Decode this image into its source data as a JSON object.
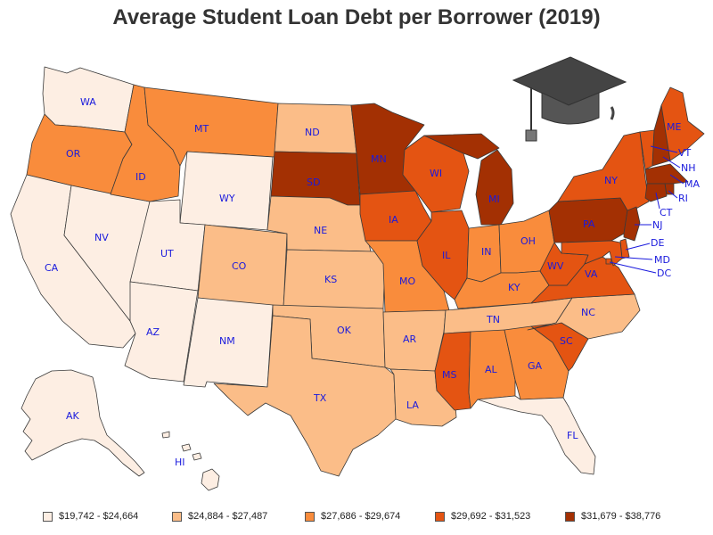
{
  "title": "Average Student Loan Debt per Borrower (2019)",
  "icon": "graduation-cap-icon",
  "bins": [
    {
      "label": "$19,742 - $24,664",
      "color": "#fdeee3"
    },
    {
      "label": "$24,884 - $27,487",
      "color": "#fbbd88"
    },
    {
      "label": "$27,686 - $29,674",
      "color": "#f98c3c"
    },
    {
      "label": "$29,692 - $31,523",
      "color": "#e45412"
    },
    {
      "label": "$31,679 - $38,776",
      "color": "#a33003"
    }
  ],
  "states": [
    {
      "abbr": "WA",
      "bin": 0
    },
    {
      "abbr": "OR",
      "bin": 2
    },
    {
      "abbr": "CA",
      "bin": 0
    },
    {
      "abbr": "NV",
      "bin": 0
    },
    {
      "abbr": "ID",
      "bin": 2
    },
    {
      "abbr": "MT",
      "bin": 2
    },
    {
      "abbr": "WY",
      "bin": 0
    },
    {
      "abbr": "UT",
      "bin": 0
    },
    {
      "abbr": "AZ",
      "bin": 0
    },
    {
      "abbr": "CO",
      "bin": 1
    },
    {
      "abbr": "NM",
      "bin": 0
    },
    {
      "abbr": "ND",
      "bin": 1
    },
    {
      "abbr": "SD",
      "bin": 4
    },
    {
      "abbr": "NE",
      "bin": 1
    },
    {
      "abbr": "KS",
      "bin": 1
    },
    {
      "abbr": "OK",
      "bin": 1
    },
    {
      "abbr": "TX",
      "bin": 1
    },
    {
      "abbr": "MN",
      "bin": 4
    },
    {
      "abbr": "IA",
      "bin": 3
    },
    {
      "abbr": "MO",
      "bin": 2
    },
    {
      "abbr": "AR",
      "bin": 1
    },
    {
      "abbr": "LA",
      "bin": 1
    },
    {
      "abbr": "WI",
      "bin": 3
    },
    {
      "abbr": "IL",
      "bin": 3
    },
    {
      "abbr": "MI",
      "bin": 4
    },
    {
      "abbr": "IN",
      "bin": 2
    },
    {
      "abbr": "OH",
      "bin": 2
    },
    {
      "abbr": "KY",
      "bin": 2
    },
    {
      "abbr": "TN",
      "bin": 1
    },
    {
      "abbr": "MS",
      "bin": 3
    },
    {
      "abbr": "AL",
      "bin": 2
    },
    {
      "abbr": "GA",
      "bin": 2
    },
    {
      "abbr": "FL",
      "bin": 0
    },
    {
      "abbr": "SC",
      "bin": 3
    },
    {
      "abbr": "NC",
      "bin": 1
    },
    {
      "abbr": "VA",
      "bin": 3
    },
    {
      "abbr": "WV",
      "bin": 3
    },
    {
      "abbr": "PA",
      "bin": 4
    },
    {
      "abbr": "NY",
      "bin": 3
    },
    {
      "abbr": "VT",
      "bin": 3
    },
    {
      "abbr": "NH",
      "bin": 4
    },
    {
      "abbr": "ME",
      "bin": 3
    },
    {
      "abbr": "MA",
      "bin": 4
    },
    {
      "abbr": "RI",
      "bin": 4
    },
    {
      "abbr": "CT",
      "bin": 4
    },
    {
      "abbr": "NJ",
      "bin": 4
    },
    {
      "abbr": "DE",
      "bin": 3
    },
    {
      "abbr": "MD",
      "bin": 3
    },
    {
      "abbr": "DC",
      "bin": 3
    },
    {
      "abbr": "AK",
      "bin": 0
    },
    {
      "abbr": "HI",
      "bin": 0
    }
  ]
}
